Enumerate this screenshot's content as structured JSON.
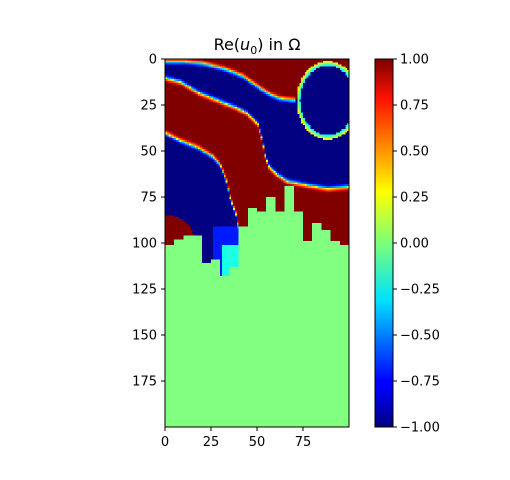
{
  "chart_data": {
    "type": "heatmap",
    "title": "Re(u₀) in Ω",
    "title_parts": {
      "pre": "Re(",
      "var": "u",
      "sub": "0",
      "post": ") in Ω"
    },
    "xlabel": "",
    "ylabel": "",
    "colormap": "jet",
    "clim": [
      -1.0,
      1.0
    ],
    "grid_size": [
      100,
      200
    ],
    "x_range": [
      0,
      100
    ],
    "y_range": [
      0,
      200
    ],
    "y_inverted": true,
    "grid": false,
    "x_ticks": [
      0,
      25,
      50,
      75
    ],
    "x_tick_labels": [
      "0",
      "25",
      "50",
      "75"
    ],
    "y_ticks": [
      0,
      25,
      50,
      75,
      100,
      125,
      150,
      175
    ],
    "y_tick_labels": [
      "0",
      "25",
      "50",
      "75",
      "100",
      "125",
      "150",
      "175"
    ],
    "colorbar_ticks": [
      1.0,
      0.75,
      0.5,
      0.25,
      0.0,
      -0.25,
      -0.5,
      -0.75,
      -1.0
    ],
    "colorbar_tick_labels": [
      "1.00",
      "0.75",
      "0.50",
      "0.25",
      "0.00",
      "−0.25",
      "−0.50",
      "−0.75",
      "−1.00"
    ],
    "field_description": "Upper region (rows 0-~110) shows wavy saturated bands alternating between +1 (dark red) and -1 (dark blue) with sharp transitions; lower region is uniformly 0 (light green) separated by a blocky staircase boundary."
  }
}
